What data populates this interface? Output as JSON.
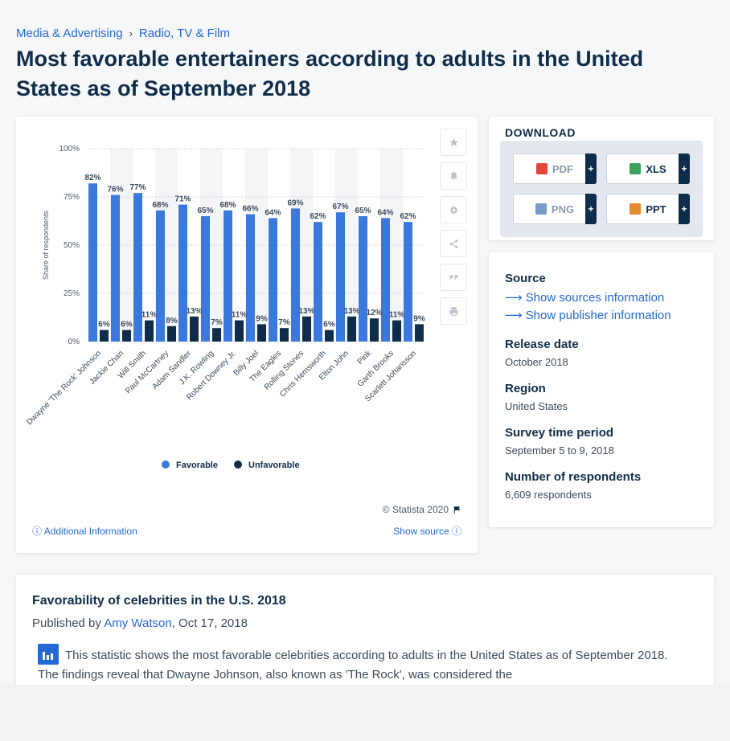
{
  "breadcrumb": {
    "item1": "Media & Advertising",
    "separator": "›",
    "item2": "Radio, TV & Film"
  },
  "page_title": "Most favorable entertainers according to adults in the United States as of September 2018",
  "chart_data": {
    "type": "bar",
    "ylabel": "Share of respondents",
    "y_ticks": [
      "100%",
      "75%",
      "50%",
      "25%",
      "0%"
    ],
    "ylim": [
      0,
      100
    ],
    "categories": [
      "Dwayne 'The Rock' Johnson",
      "Jackie Chan",
      "Will Smith",
      "Paul McCartney",
      "Adam Sandler",
      "J.K. Rowling",
      "Robert Downey Jr.",
      "Billy Joel",
      "The Eagles",
      "Rolling Stones",
      "Chris Hemsworth",
      "Elton John",
      "Pink",
      "Garth Brooks",
      "Scarlett Johansson"
    ],
    "series": [
      {
        "name": "Favorable",
        "color": "#3a78dd",
        "values": [
          82,
          76,
          77,
          68,
          71,
          65,
          68,
          66,
          64,
          69,
          62,
          67,
          65,
          64,
          62
        ],
        "labels": [
          "82%",
          "76%",
          "77%",
          "68%",
          "71%",
          "65%",
          "68%",
          "66%",
          "64%",
          "69%",
          "62%",
          "67%",
          "65%",
          "64%",
          "62%"
        ]
      },
      {
        "name": "Unfavorable",
        "color": "#0f2d4a",
        "values": [
          6,
          6,
          11,
          8,
          13,
          7,
          11,
          9,
          7,
          13,
          6,
          13,
          12,
          11,
          9
        ],
        "labels": [
          "6%",
          "6%",
          "11%",
          "8%",
          "13%",
          "7%",
          "11%",
          "9%",
          "7%",
          "13%",
          "6%",
          "13%",
          "12%",
          "11%",
          "9%"
        ]
      }
    ],
    "legend": "bottom"
  },
  "chart_footer": {
    "credit": "© Statista 2020",
    "additional_info": "Additional Information",
    "show_source": "Show source"
  },
  "toolbar_icons": [
    "star-icon",
    "bell-icon",
    "gear-icon",
    "share-icon",
    "quote-icon",
    "print-icon"
  ],
  "download": {
    "title": "DOWNLOAD",
    "buttons": [
      {
        "label": "PDF",
        "plus": "+",
        "color": "#e0463d"
      },
      {
        "label": "XLS",
        "plus": "+",
        "color": "#3aa35b"
      },
      {
        "label": "PNG",
        "plus": "+",
        "color": "#7a9bc5"
      },
      {
        "label": "PPT",
        "plus": "+",
        "color": "#e58a2e"
      }
    ]
  },
  "meta": {
    "source_heading": "Source",
    "show_sources": "Show sources information",
    "show_publisher": "Show publisher information",
    "release_heading": "Release date",
    "release_value": "October 2018",
    "region_heading": "Region",
    "region_value": "United States",
    "survey_heading": "Survey time period",
    "survey_value": "September 5 to 9, 2018",
    "respondents_heading": "Number of respondents",
    "respondents_value": "6,609 respondents"
  },
  "description": {
    "title": "Favorability of celebrities in the U.S. 2018",
    "published_prefix": "Published by",
    "author": "Amy Watson",
    "date": ", Oct 17, 2018",
    "text": "This statistic shows the most favorable celebrities according to adults in the United States as of September 2018. The findings reveal that Dwayne Johnson, also known as 'The Rock', was considered the"
  }
}
